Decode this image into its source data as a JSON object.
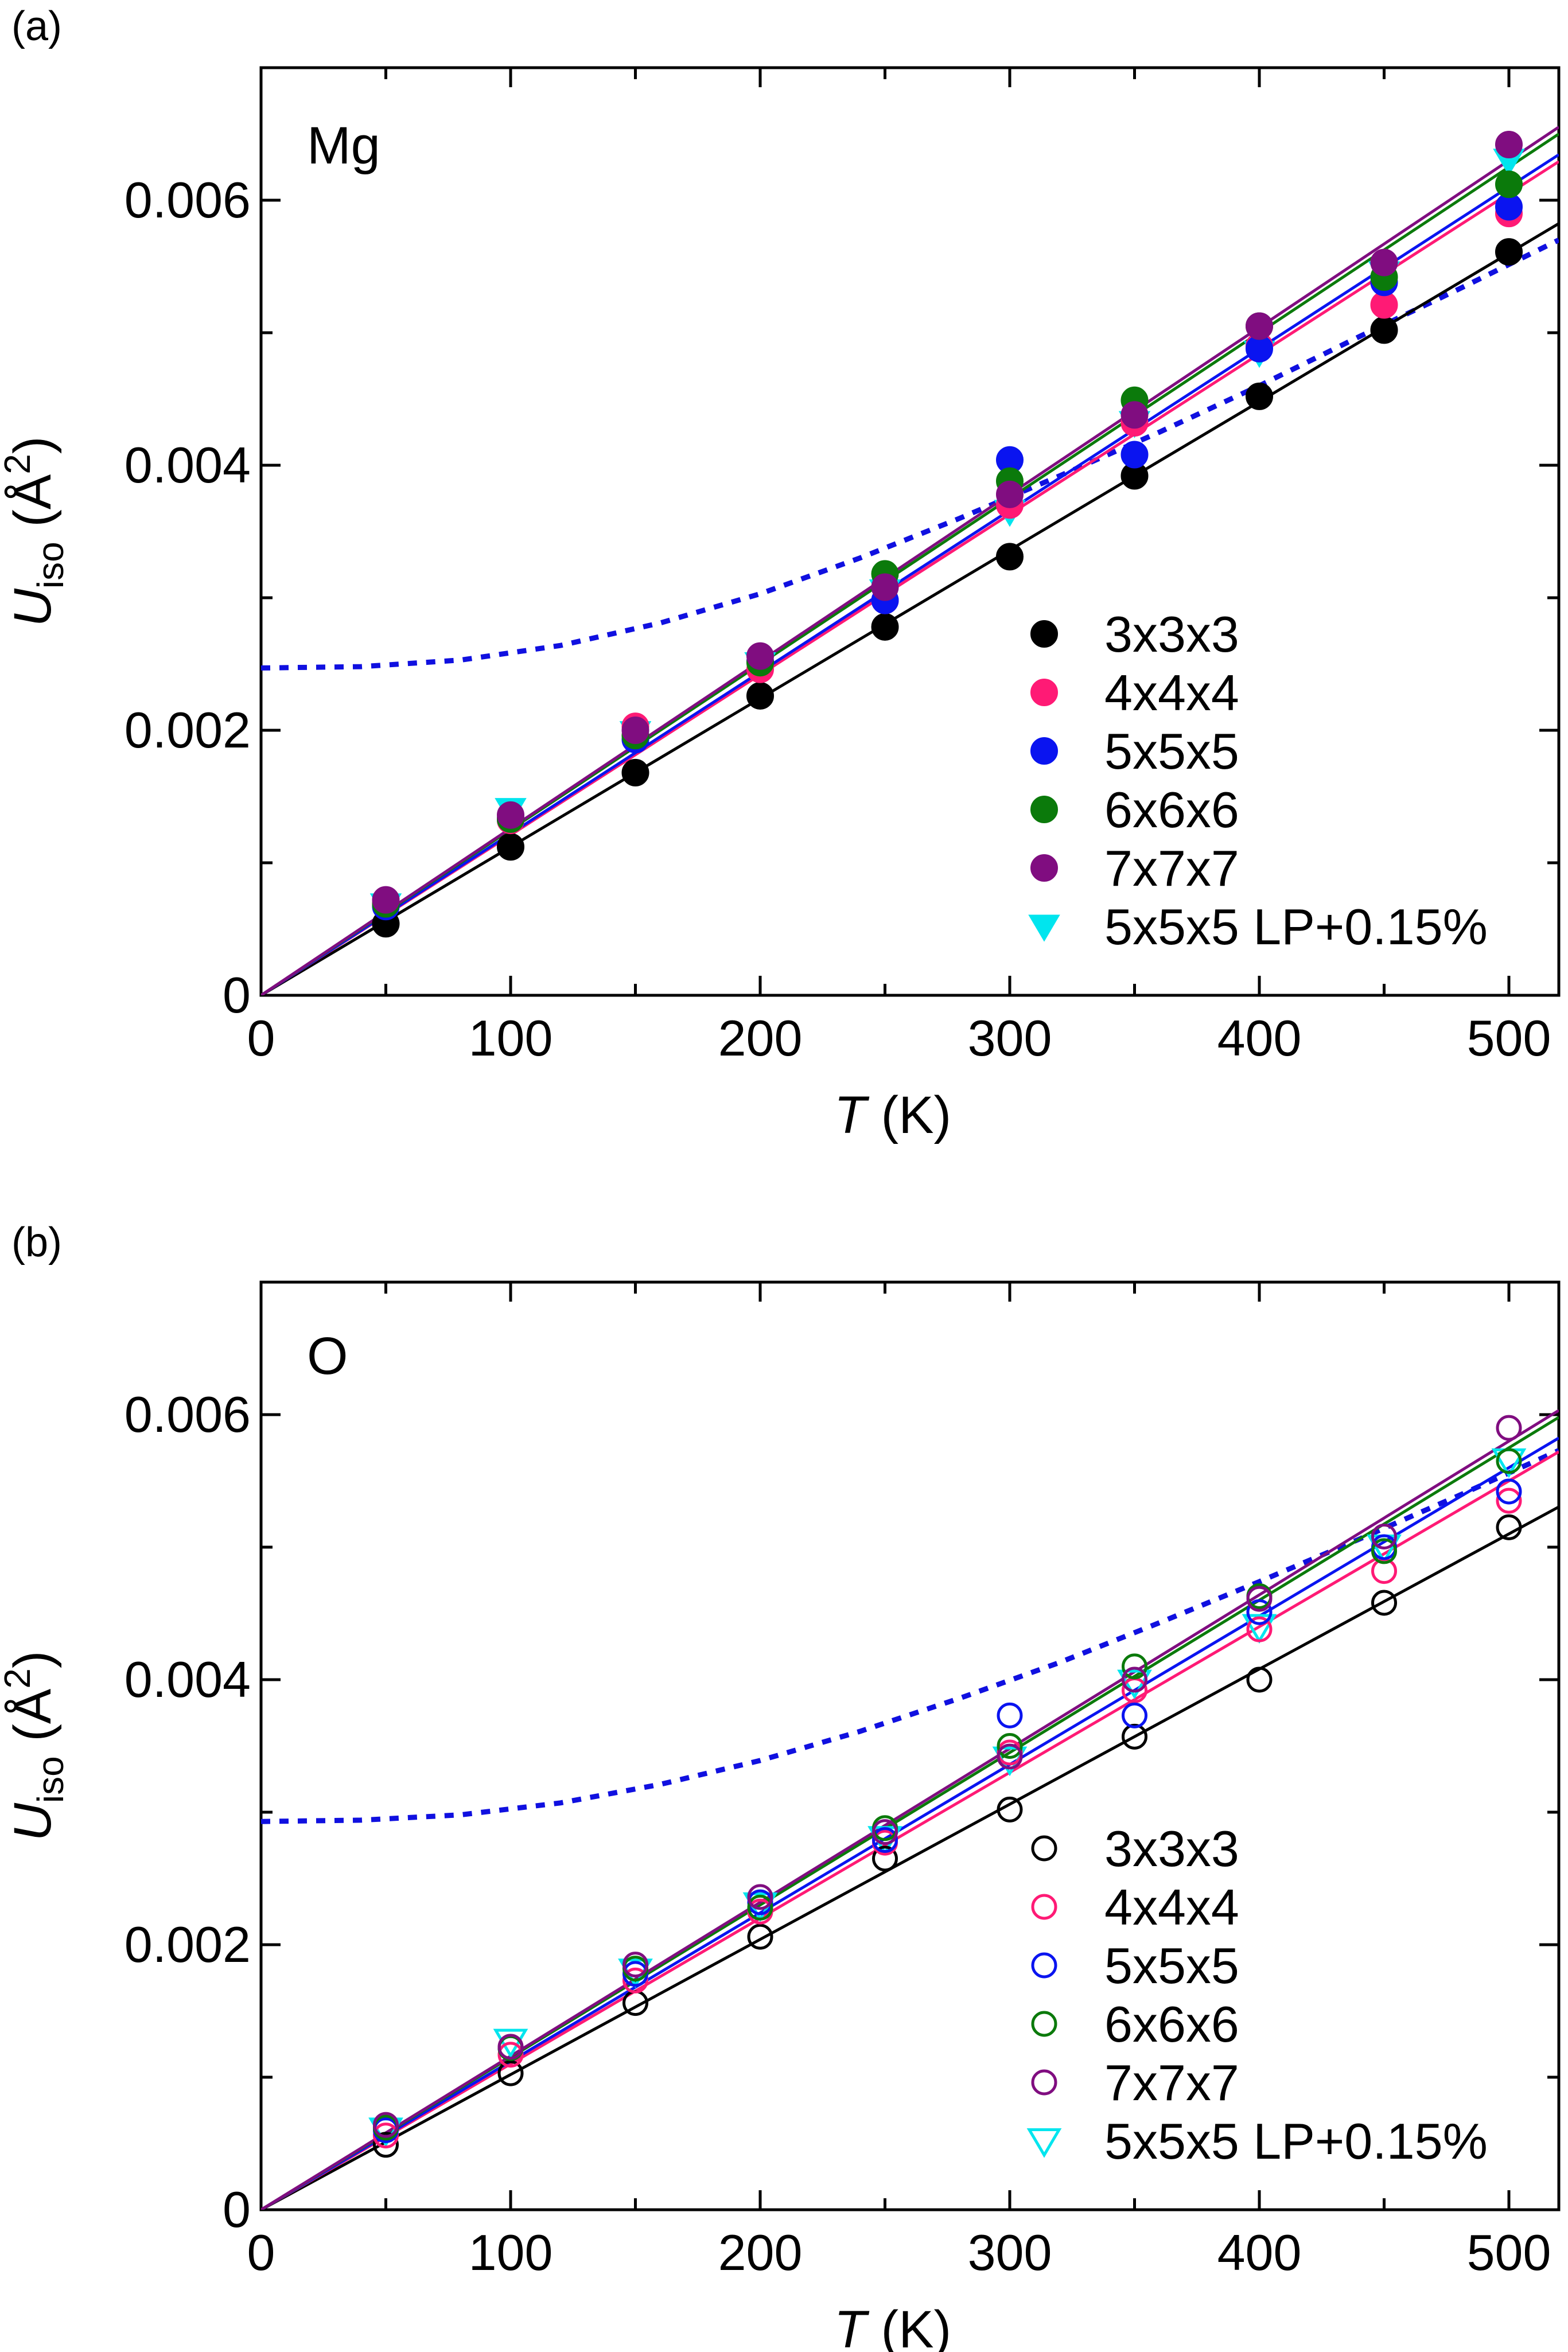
{
  "chart_data": [
    {
      "type": "scatter",
      "panel_label": "(a)",
      "element_label": "Mg",
      "marker_fill": "filled",
      "xlabel": {
        "symbol": "T",
        "unit": " (K)"
      },
      "ylabel": {
        "symbol": "U",
        "sub": "iso",
        "unit_prefix": " (Å",
        "sup": "2",
        "unit_suffix": ")"
      },
      "xlim": [
        0,
        520
      ],
      "ylim": [
        0,
        0.007
      ],
      "x_ticks": [
        0,
        100,
        200,
        300,
        400,
        500
      ],
      "x_tick_labels": [
        "0",
        "100",
        "200",
        "300",
        "400",
        "500"
      ],
      "y_ticks": [
        0,
        0.002,
        0.004,
        0.006
      ],
      "y_tick_labels": [
        "0",
        "0.002",
        "0.004",
        "0.006"
      ],
      "legend_position": "lower-right",
      "x": [
        50,
        100,
        150,
        200,
        250,
        300,
        350,
        400,
        450,
        500
      ],
      "series": [
        {
          "name": "3x3x3",
          "color": "#000000",
          "marker": "circle",
          "fit_slope": 1.12e-05,
          "values": [
            0.00054,
            0.00112,
            0.00168,
            0.00226,
            0.00278,
            0.00331,
            0.00392,
            0.00452,
            0.00502,
            0.00561
          ]
        },
        {
          "name": "4x4x4",
          "color": "#ff1a75",
          "marker": "circle",
          "fit_slope": 1.21e-05,
          "values": [
            0.00069,
            0.00132,
            0.00203,
            0.00246,
            0.00298,
            0.0037,
            0.00432,
            0.0049,
            0.00521,
            0.0059
          ]
        },
        {
          "name": "5x5x5",
          "color": "#0a14f0",
          "marker": "circle",
          "fit_slope": 1.22e-05,
          "values": [
            0.00067,
            0.00133,
            0.00193,
            0.00252,
            0.00298,
            0.00404,
            0.00408,
            0.00488,
            0.00538,
            0.00595
          ]
        },
        {
          "name": "6x6x6",
          "color": "#0b7a0b",
          "marker": "circle",
          "fit_slope": 1.25e-05,
          "values": [
            0.00069,
            0.00133,
            0.00196,
            0.00251,
            0.00318,
            0.00388,
            0.00449,
            0.00505,
            0.00542,
            0.00612
          ]
        },
        {
          "name": "7x7x7",
          "color": "#800d80",
          "marker": "circle",
          "fit_slope": 1.26e-05,
          "values": [
            0.00072,
            0.00136,
            0.002,
            0.00256,
            0.00308,
            0.00378,
            0.00438,
            0.00505,
            0.00553,
            0.00642
          ]
        },
        {
          "name": "5x5x5 LP+0.15%",
          "color": "#00e5ee",
          "marker": "triangle-down",
          "fit_slope": null,
          "values": [
            0.00068,
            0.0014,
            0.00198,
            0.0025,
            0.00305,
            0.00365,
            0.00432,
            0.00485,
            0.00545,
            0.0063
          ]
        }
      ],
      "dotted_curve": {
        "color": "#1010e0",
        "x": [
          0,
          40,
          80,
          120,
          160,
          200,
          240,
          280,
          320,
          360,
          400,
          440,
          480,
          520
        ],
        "y": [
          0.00247,
          0.00248,
          0.00253,
          0.00264,
          0.00281,
          0.00303,
          0.0033,
          0.0036,
          0.00392,
          0.00425,
          0.0046,
          0.00497,
          0.00533,
          0.0057
        ]
      }
    },
    {
      "type": "scatter",
      "panel_label": "(b)",
      "element_label": "O",
      "marker_fill": "open",
      "xlabel": {
        "symbol": "T",
        "unit": " (K)"
      },
      "ylabel": {
        "symbol": "U",
        "sub": "iso",
        "unit_prefix": " (Å",
        "sup": "2",
        "unit_suffix": ")"
      },
      "xlim": [
        0,
        520
      ],
      "ylim": [
        0,
        0.007
      ],
      "x_ticks": [
        0,
        100,
        200,
        300,
        400,
        500
      ],
      "x_tick_labels": [
        "0",
        "100",
        "200",
        "300",
        "400",
        "500"
      ],
      "y_ticks": [
        0,
        0.002,
        0.004,
        0.006
      ],
      "y_tick_labels": [
        "0",
        "0.002",
        "0.004",
        "0.006"
      ],
      "legend_position": "lower-right",
      "x": [
        50,
        100,
        150,
        200,
        250,
        300,
        350,
        400,
        450,
        500
      ],
      "series": [
        {
          "name": "3x3x3",
          "color": "#000000",
          "marker": "circle",
          "fit_slope": 1.02e-05,
          "values": [
            0.00049,
            0.00103,
            0.00156,
            0.00206,
            0.00265,
            0.00302,
            0.00357,
            0.004,
            0.00458,
            0.00515
          ]
        },
        {
          "name": "4x4x4",
          "color": "#ff1a75",
          "marker": "circle",
          "fit_slope": 1.1e-05,
          "values": [
            0.00056,
            0.00117,
            0.00173,
            0.00225,
            0.00277,
            0.00345,
            0.00392,
            0.00438,
            0.00482,
            0.00535
          ]
        },
        {
          "name": "5x5x5",
          "color": "#0a14f0",
          "marker": "circle",
          "fit_slope": 1.12e-05,
          "values": [
            0.0006,
            0.00122,
            0.00178,
            0.00232,
            0.00279,
            0.00373,
            0.00373,
            0.00451,
            0.005,
            0.00542
          ]
        },
        {
          "name": "6x6x6",
          "color": "#0b7a0b",
          "marker": "circle",
          "fit_slope": 1.15e-05,
          "values": [
            0.00062,
            0.00122,
            0.00182,
            0.00228,
            0.00288,
            0.0035,
            0.0041,
            0.00463,
            0.00497,
            0.00565
          ]
        },
        {
          "name": "7x7x7",
          "color": "#800d80",
          "marker": "circle",
          "fit_slope": 1.16e-05,
          "values": [
            0.00064,
            0.00123,
            0.00185,
            0.00236,
            0.00285,
            0.00342,
            0.004,
            0.00461,
            0.00508,
            0.0059
          ]
        },
        {
          "name": "5x5x5 LP+0.15%",
          "color": "#00e5ee",
          "marker": "triangle-down",
          "fit_slope": null,
          "values": [
            0.0006,
            0.00127,
            0.0018,
            0.0023,
            0.0028,
            0.0034,
            0.00398,
            0.0044,
            0.005,
            0.00565
          ]
        }
      ],
      "dotted_curve": {
        "color": "#1010e0",
        "x": [
          0,
          40,
          80,
          120,
          160,
          200,
          240,
          280,
          320,
          360,
          400,
          440,
          480,
          520
        ],
        "y": [
          0.00293,
          0.00294,
          0.00298,
          0.00307,
          0.00321,
          0.00339,
          0.00361,
          0.00386,
          0.00413,
          0.00443,
          0.00474,
          0.00506,
          0.00539,
          0.00573
        ]
      }
    }
  ]
}
